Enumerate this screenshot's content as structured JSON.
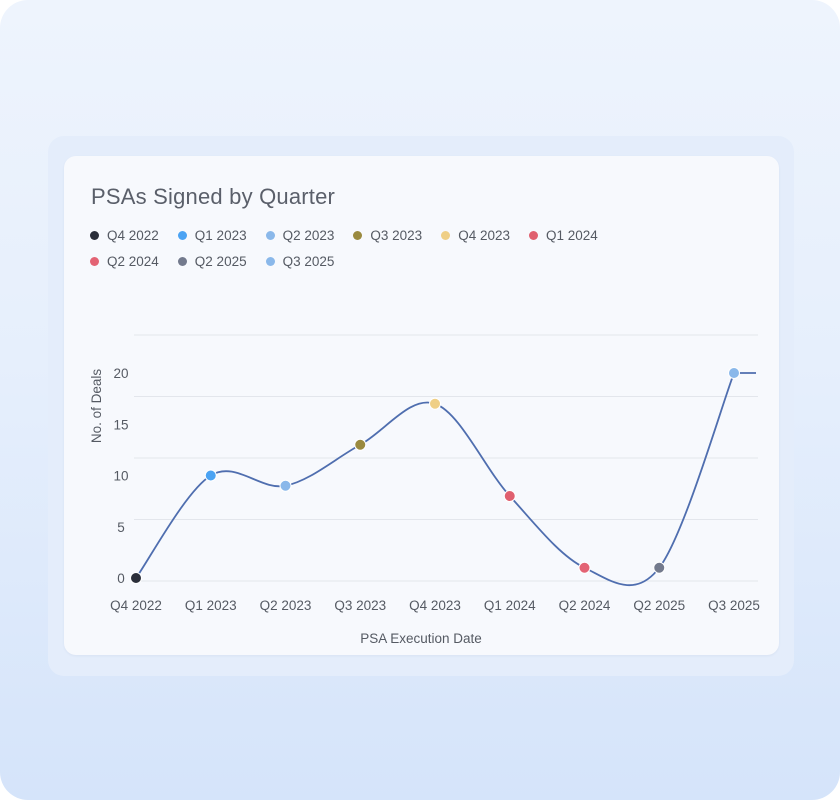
{
  "chart_data": {
    "type": "line",
    "title": "PSAs Signed by Quarter",
    "xlabel": "PSA Execution Date",
    "ylabel": "No. of Deals",
    "categories": [
      "Q4 2022",
      "Q1 2023",
      "Q2 2023",
      "Q3 2023",
      "Q4 2023",
      "Q1 2024",
      "Q2 2024",
      "Q2 2025",
      "Q3 2025"
    ],
    "values": [
      0,
      10,
      9,
      13,
      17,
      8,
      1,
      1,
      20
    ],
    "point_colors": [
      "#2b2f3a",
      "#4ba3f3",
      "#8ab8ea",
      "#9a8a3f",
      "#efcf86",
      "#e0606f",
      "#e36374",
      "#737a8d",
      "#8ab8ea"
    ],
    "line_color": "#4f6eaf",
    "yticks": [
      0,
      5,
      10,
      15,
      20
    ],
    "ylim": [
      0,
      24
    ],
    "grid": true,
    "legend_position": "top-left"
  }
}
